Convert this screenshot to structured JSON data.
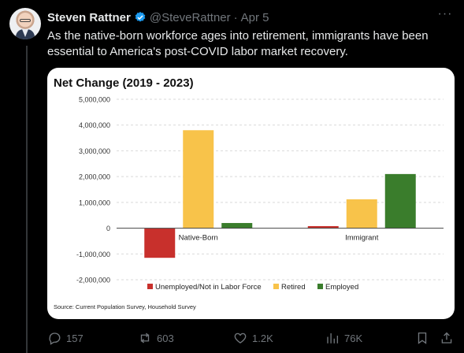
{
  "tweet": {
    "author_name": "Steven Rattner",
    "handle": "@SteveRattner",
    "separator": "·",
    "date": "Apr 5",
    "more_label": "···",
    "text": "As the native-born workforce ages into retirement, immigrants have been essential to America's post-COVID labor market recovery."
  },
  "actions": {
    "replies": "157",
    "reposts": "603",
    "likes": "1.2K",
    "views": "76K"
  },
  "colors": {
    "unemployed": "#c8302c",
    "retired": "#f8c34a",
    "employed": "#3a7d2c",
    "accent": "#1d9bf0"
  },
  "chart_data": {
    "type": "bar",
    "title": "Net Change (2019 - 2023)",
    "categories": [
      "Native-Born",
      "Immigrant"
    ],
    "series": [
      {
        "name": "Unemployed/Not in Labor Force",
        "values": [
          -1150000,
          80000
        ]
      },
      {
        "name": "Retired",
        "values": [
          3800000,
          1120000
        ]
      },
      {
        "name": "Employed",
        "values": [
          200000,
          2100000
        ]
      }
    ],
    "y_ticks": [
      "5,000,000",
      "4,000,000",
      "3,000,000",
      "2,000,000",
      "1,000,000",
      "0",
      "-1,000,000",
      "-2,000,000"
    ],
    "ylim": [
      -2000000,
      5000000
    ],
    "grid": true,
    "legend_position": "bottom",
    "source": "Source: Current Population Survey, Household Survey"
  }
}
